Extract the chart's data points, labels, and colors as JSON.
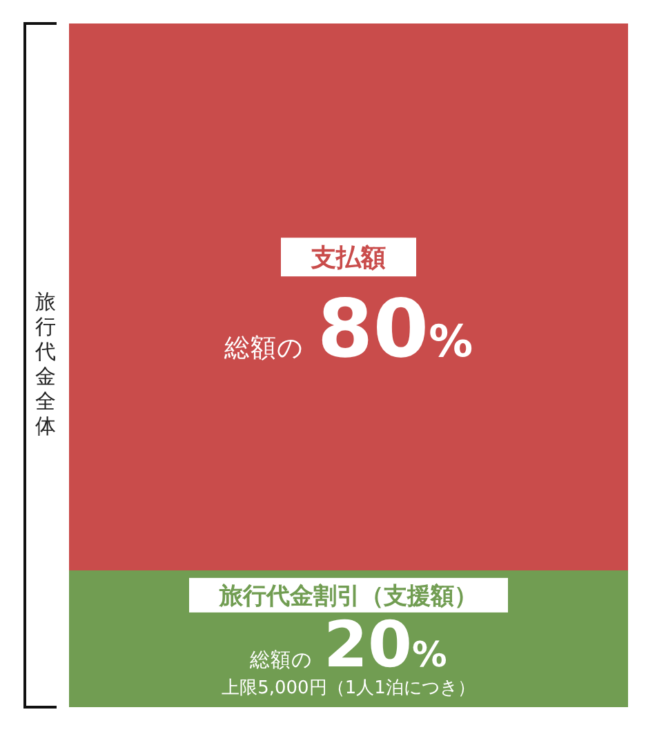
{
  "chart_data": {
    "type": "bar",
    "stacked": true,
    "tick_labels": false,
    "ylabel": "旅行代金全体",
    "categories": [
      null
    ],
    "series": [
      {
        "name": "旅行代金割引（支援額）",
        "color": "#719d52",
        "values": [
          20
        ],
        "value_labels": [
          "総額の20%"
        ]
      },
      {
        "name": "支払額",
        "color": "#c94c4b",
        "values": [
          80
        ],
        "value_labels": [
          "総額の80%"
        ]
      }
    ],
    "annotations": [
      "上限5,000円（1人1泊につき）"
    ]
  }
}
